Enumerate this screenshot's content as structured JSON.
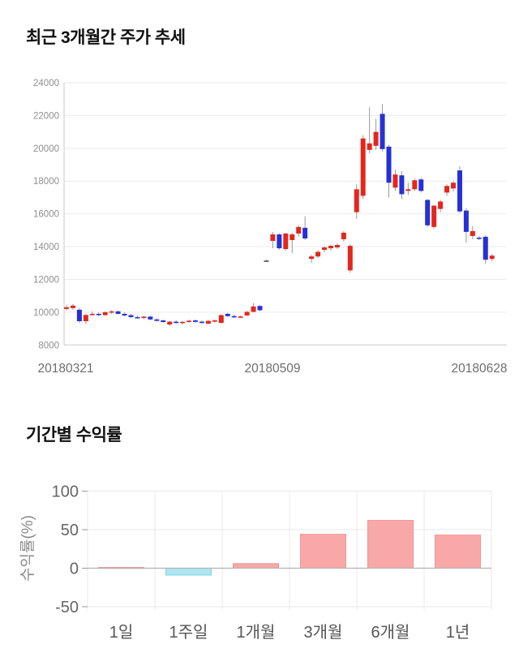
{
  "chart_data": [
    {
      "type": "candlestick",
      "title": "최근 3개월간 주가 추세",
      "x_tick_labels": [
        "20180321",
        "20180509",
        "20180628"
      ],
      "y_ticks": [
        8000,
        10000,
        12000,
        14000,
        16000,
        18000,
        20000,
        22000,
        24000
      ],
      "ylim": [
        8000,
        24000
      ],
      "grid": true,
      "colors": {
        "up": "#e3271d",
        "down": "#2531d5",
        "flat": "#4d4d4d",
        "wick": "#999999",
        "grid": "#ebebeb",
        "axis": "#c9c9c9",
        "y_tick_label": "#8f8f8f",
        "x_tick_label": "#6e6e6e"
      },
      "candles_ohlc": [
        [
          10200,
          10450,
          10100,
          10300
        ],
        [
          10250,
          10500,
          10150,
          10400
        ],
        [
          10150,
          10250,
          9350,
          9450
        ],
        [
          9450,
          9900,
          9300,
          9830
        ],
        [
          9880,
          10050,
          9780,
          9900
        ],
        [
          9900,
          9980,
          9750,
          9820
        ],
        [
          9820,
          10050,
          9780,
          10000
        ],
        [
          10000,
          10120,
          9880,
          10050
        ],
        [
          10050,
          10120,
          9850,
          9900
        ],
        [
          9900,
          9980,
          9750,
          9800
        ],
        [
          9820,
          9900,
          9650,
          9700
        ],
        [
          9700,
          9820,
          9620,
          9680
        ],
        [
          9650,
          9780,
          9560,
          9730
        ],
        [
          9730,
          9780,
          9500,
          9560
        ],
        [
          9560,
          9640,
          9420,
          9470
        ],
        [
          9500,
          9560,
          9340,
          9400
        ],
        [
          9250,
          9480,
          9150,
          9420
        ],
        [
          9420,
          9520,
          9300,
          9360
        ],
        [
          9350,
          9470,
          9260,
          9410
        ],
        [
          9420,
          9540,
          9340,
          9480
        ],
        [
          9500,
          9560,
          9360,
          9410
        ],
        [
          9420,
          9500,
          9300,
          9350
        ],
        [
          9300,
          9520,
          9260,
          9470
        ],
        [
          9450,
          9560,
          9360,
          9500
        ],
        [
          9350,
          9880,
          9320,
          9820
        ],
        [
          9900,
          9960,
          9700,
          9760
        ],
        [
          9760,
          9850,
          9640,
          9700
        ],
        [
          9700,
          9800,
          9640,
          9740
        ],
        [
          9800,
          10080,
          9760,
          10020
        ],
        [
          10020,
          10560,
          9980,
          10350
        ],
        [
          10380,
          10420,
          10060,
          10120
        ],
        [
          13150,
          13200,
          13100,
          13150
        ],
        [
          14350,
          14900,
          13900,
          14750
        ],
        [
          14750,
          14800,
          13800,
          13900
        ],
        [
          13850,
          14850,
          13750,
          14800
        ],
        [
          14400,
          14850,
          13600,
          14750
        ],
        [
          14800,
          15300,
          14600,
          15200
        ],
        [
          15150,
          15850,
          14400,
          14500
        ],
        [
          13250,
          13500,
          13000,
          13400
        ],
        [
          13400,
          13780,
          13300,
          13680
        ],
        [
          13800,
          14050,
          13650,
          13950
        ],
        [
          13900,
          14120,
          13750,
          14050
        ],
        [
          13950,
          14200,
          13850,
          14100
        ],
        [
          14450,
          14950,
          14300,
          14850
        ],
        [
          12550,
          14150,
          12400,
          14050
        ],
        [
          16100,
          17800,
          15700,
          17500
        ],
        [
          17100,
          20800,
          16900,
          20600
        ],
        [
          19900,
          22500,
          19700,
          20300
        ],
        [
          20150,
          21800,
          19900,
          21000
        ],
        [
          22100,
          22700,
          19800,
          19950
        ],
        [
          20100,
          20200,
          17000,
          17900
        ],
        [
          17600,
          18700,
          17400,
          18400
        ],
        [
          18350,
          18600,
          16900,
          17200
        ],
        [
          17400,
          17900,
          17150,
          17500
        ],
        [
          17500,
          18150,
          17400,
          18050
        ],
        [
          18100,
          18200,
          17300,
          17400
        ],
        [
          16850,
          16900,
          15200,
          15300
        ],
        [
          15200,
          16550,
          15100,
          16500
        ],
        [
          16300,
          16850,
          16100,
          16750
        ],
        [
          17300,
          17800,
          17100,
          17700
        ],
        [
          17550,
          18000,
          17350,
          17900
        ],
        [
          18650,
          18900,
          16050,
          16150
        ],
        [
          16200,
          16350,
          14250,
          14900
        ],
        [
          14650,
          15250,
          14450,
          14950
        ],
        [
          14550,
          14650,
          14400,
          14500
        ],
        [
          14600,
          14700,
          12950,
          13200
        ],
        [
          13250,
          13550,
          13100,
          13450
        ]
      ]
    },
    {
      "type": "bar",
      "title": "기간별 수익률",
      "categories": [
        "1일",
        "1주일",
        "1개월",
        "3개월",
        "6개월",
        "1년"
      ],
      "values": [
        1,
        -9,
        6,
        44,
        62,
        43
      ],
      "ylabel": "수익률(%)",
      "y_ticks": [
        100,
        50,
        0,
        -50
      ],
      "ylim": [
        -50,
        100
      ],
      "grid": true,
      "colors": {
        "positive_fill": "#f9a8a8",
        "positive_stroke": "#ef9494",
        "negative_fill": "#ace7f2",
        "negative_stroke": "#85d2e2",
        "grid": "#e8e8e8",
        "zero_line": "#b3b3b3",
        "tick_stub": "#999999",
        "y_tick_label": "#666666",
        "x_tick_label": "#555555",
        "ylabel_color": "#8a8a8a"
      }
    }
  ]
}
